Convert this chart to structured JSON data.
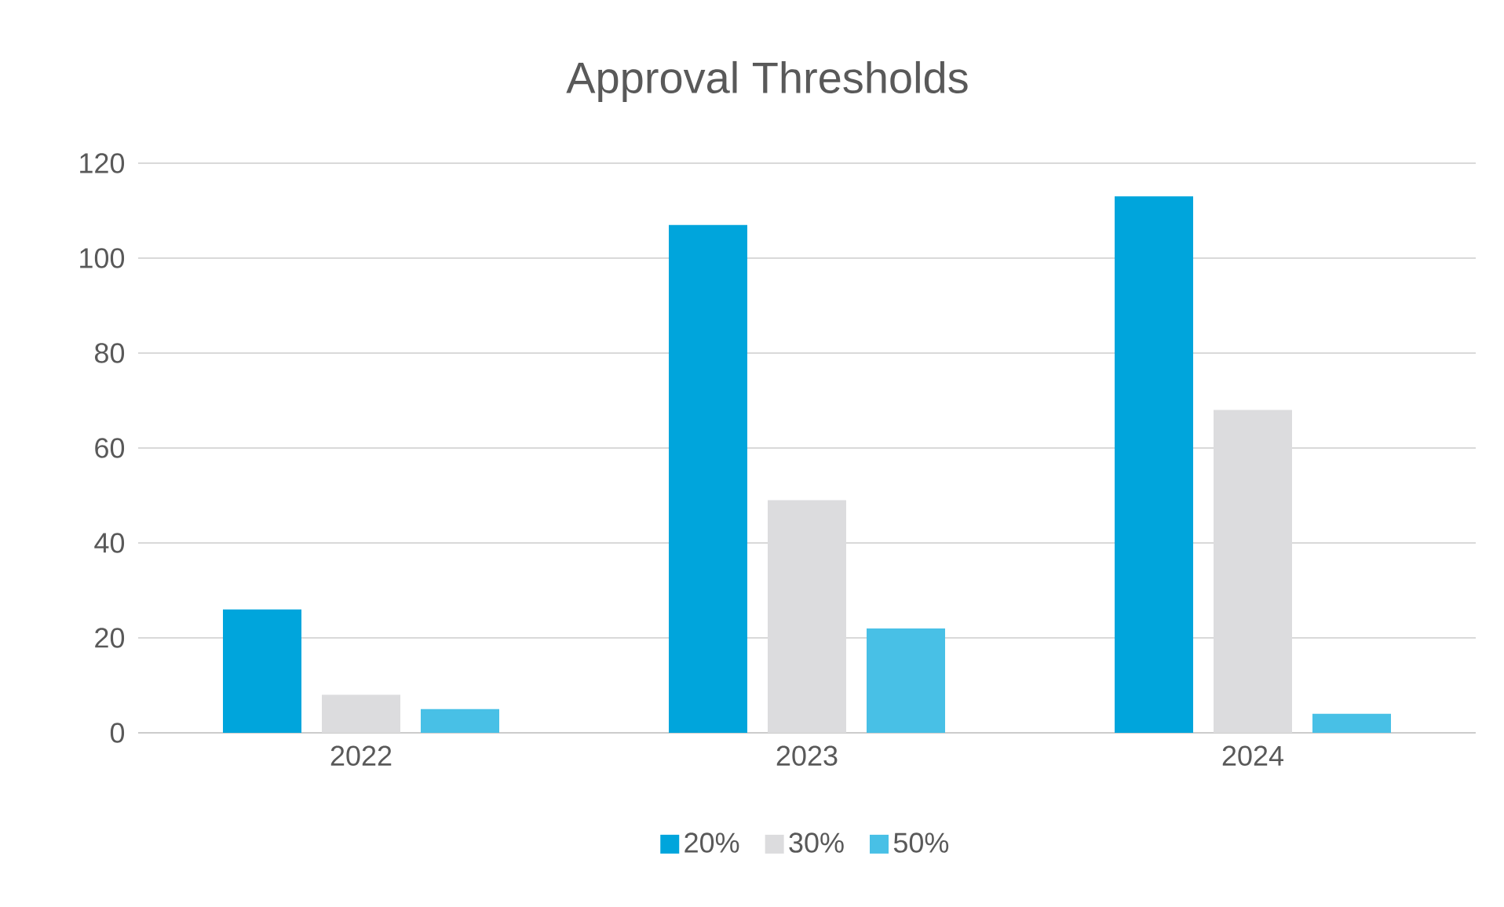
{
  "chart_data": {
    "type": "bar",
    "title": "Approval Thresholds",
    "categories": [
      "2022",
      "2023",
      "2024"
    ],
    "series": [
      {
        "name": "20%",
        "color": "#00a5dc",
        "values": [
          26,
          107,
          113
        ]
      },
      {
        "name": "30%",
        "color": "#dcdcde",
        "values": [
          8,
          49,
          68
        ]
      },
      {
        "name": "50%",
        "color": "#48c0e6",
        "values": [
          5,
          22,
          4
        ]
      }
    ],
    "ylim": [
      0,
      120
    ],
    "yticks": [
      0,
      20,
      40,
      60,
      80,
      100,
      120
    ],
    "grid": "y",
    "legend": "bottom"
  }
}
